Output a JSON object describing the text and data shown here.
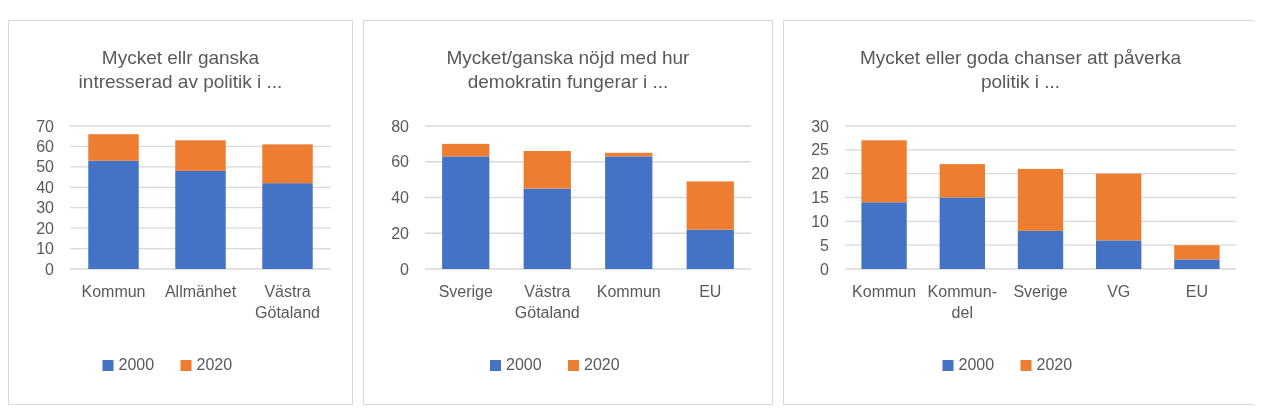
{
  "chart_data": [
    {
      "type": "bar",
      "stacked": true,
      "title": "Mycket ellr ganska intresserad av politik i ...",
      "categories": [
        "Kommun",
        "Allmänhet",
        "Västra Götaland"
      ],
      "series": [
        {
          "name": "2000",
          "color": "#4472c4",
          "values": [
            53,
            48,
            42
          ]
        },
        {
          "name": "2020",
          "color": "#ed7d31",
          "values": [
            13,
            15,
            19
          ]
        }
      ],
      "ylim": [
        0,
        70
      ],
      "yticks": [
        0,
        10,
        20,
        30,
        40,
        50,
        60,
        70
      ],
      "grid": "y",
      "legend": "bottom"
    },
    {
      "type": "bar",
      "stacked": true,
      "title": "Mycket/ganska nöjd med hur demokratin fungerar i ...",
      "categories": [
        "Sverige",
        "Västra Götaland",
        "Kommun",
        "EU"
      ],
      "series": [
        {
          "name": "2000",
          "color": "#4472c4",
          "values": [
            63,
            45,
            63,
            22
          ]
        },
        {
          "name": "2020",
          "color": "#ed7d31",
          "values": [
            7,
            21,
            2,
            27
          ]
        }
      ],
      "ylim": [
        0,
        80
      ],
      "yticks": [
        0,
        20,
        40,
        60,
        80
      ],
      "grid": "y",
      "legend": "bottom"
    },
    {
      "type": "bar",
      "stacked": true,
      "title": "Mycket eller goda chanser att påverka politik  i ...",
      "categories": [
        "Kommun",
        "Kommun-del",
        "Sverige",
        "VG",
        "EU"
      ],
      "series": [
        {
          "name": "2000",
          "color": "#4472c4",
          "values": [
            14,
            15,
            8,
            6,
            2
          ]
        },
        {
          "name": "2020",
          "color": "#ed7d31",
          "values": [
            13,
            7,
            13,
            14,
            3
          ]
        }
      ],
      "ylim": [
        0,
        30
      ],
      "yticks": [
        0,
        5,
        10,
        15,
        20,
        25,
        30
      ],
      "grid": "y",
      "legend": "bottom"
    }
  ]
}
